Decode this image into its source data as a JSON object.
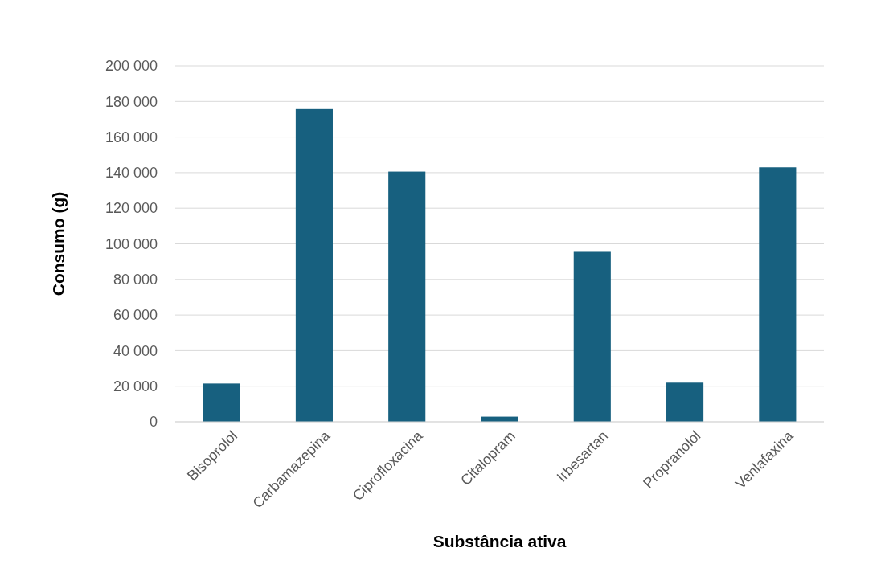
{
  "chart_data": {
    "type": "bar",
    "xlabel": "Substância ativa",
    "ylabel": "Consumo (g)",
    "categories": [
      "Bisoprolol",
      "Carbamazepina",
      "Ciprofloxacina",
      "Citalopram",
      "Irbesartan",
      "Propranolol",
      "Venlafaxina"
    ],
    "values": [
      21500,
      175700,
      140600,
      2900,
      95500,
      22000,
      143000
    ],
    "color": "#17607f",
    "ylim": [
      0,
      200000
    ],
    "yticks": [
      {
        "value": 0,
        "label": "0"
      },
      {
        "value": 20000,
        "label": "20 000"
      },
      {
        "value": 40000,
        "label": "40 000"
      },
      {
        "value": 60000,
        "label": "60 000"
      },
      {
        "value": 80000,
        "label": "80 000"
      },
      {
        "value": 100000,
        "label": "100 000"
      },
      {
        "value": 120000,
        "label": "120 000"
      },
      {
        "value": 140000,
        "label": "140 000"
      },
      {
        "value": 160000,
        "label": "160 000"
      },
      {
        "value": 180000,
        "label": "180 000"
      },
      {
        "value": 200000,
        "label": "200 000"
      }
    ],
    "grid": "y"
  }
}
